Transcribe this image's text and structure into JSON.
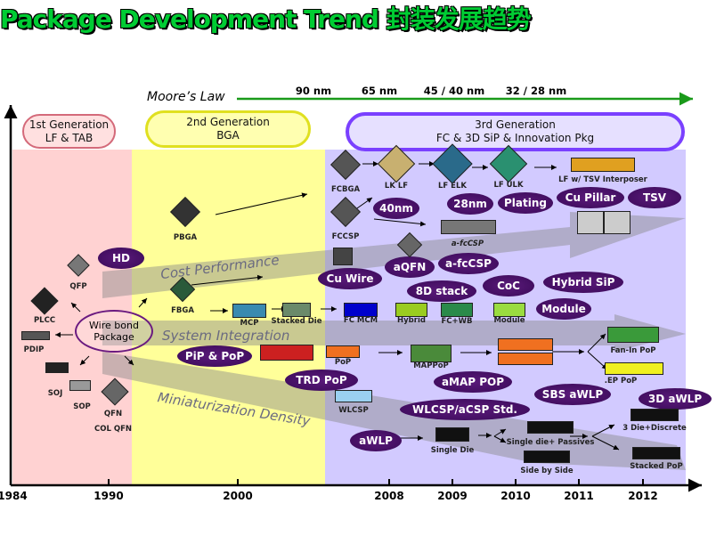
{
  "title": "Package Development Trend 封装发展趋势",
  "moores_law": {
    "label": "Moore’s Law",
    "nodes": [
      "90 nm",
      "65 nm",
      "45 / 40 nm",
      "32 / 28 nm"
    ],
    "color": "#1a9a1a"
  },
  "generations": [
    {
      "line1": "1st Generation",
      "line2": "LF & TAB"
    },
    {
      "line1": "2nd Generation",
      "line2": "BGA"
    },
    {
      "line1": "3rd Generation",
      "line2": "FC & 3D SiP & Innovation Pkg"
    }
  ],
  "colors": {
    "gen1": "#ffd2d2",
    "gen2": "#ffff99",
    "gen3": "#cfc8ff",
    "oval": "#3f0c5c"
  },
  "years": [
    "1984",
    "1990",
    "2000",
    "2008",
    "2009",
    "2010",
    "2011",
    "2012"
  ],
  "bands": [
    "Cost Performance",
    "System Integration",
    "Miniaturization Density"
  ],
  "center_label": "Wire bond Package",
  "technologies": [
    "HD",
    "40nm",
    "28nm",
    "Plating",
    "Cu Pillar",
    "TSV",
    "aQFN",
    "a-fcCSP",
    "Cu Wire",
    "8D stack",
    "CoC",
    "Hybrid SiP",
    "Module",
    "PiP & PoP",
    "TRD PoP",
    "aMAP POP",
    "SBS aWLP",
    "3D aWLP",
    "WLCSP/aCSP Std.",
    "aWLP"
  ],
  "packages": [
    "QFP",
    "PLCC",
    "PDIP",
    "SOJ",
    "SOP",
    "QFN",
    "COL QFN",
    "PBGA",
    "FBGA",
    "MCP",
    "Stacked Die",
    "FCBGA",
    "FCCSP",
    "LK LF",
    "LF ELK",
    "LF ULK",
    "LF w/ TSV Interposer",
    "a-fcCSP",
    "FC MCM",
    "Hybrid",
    "FC+WB",
    "Module",
    "PoP",
    "MAPPoP",
    "WLCSP",
    "Fan-In PoP",
    ".EP PoP",
    "Single Die",
    "Single die+ Passives",
    "Side by Side",
    "3 Die+Discrete",
    "Stacked PoP"
  ]
}
